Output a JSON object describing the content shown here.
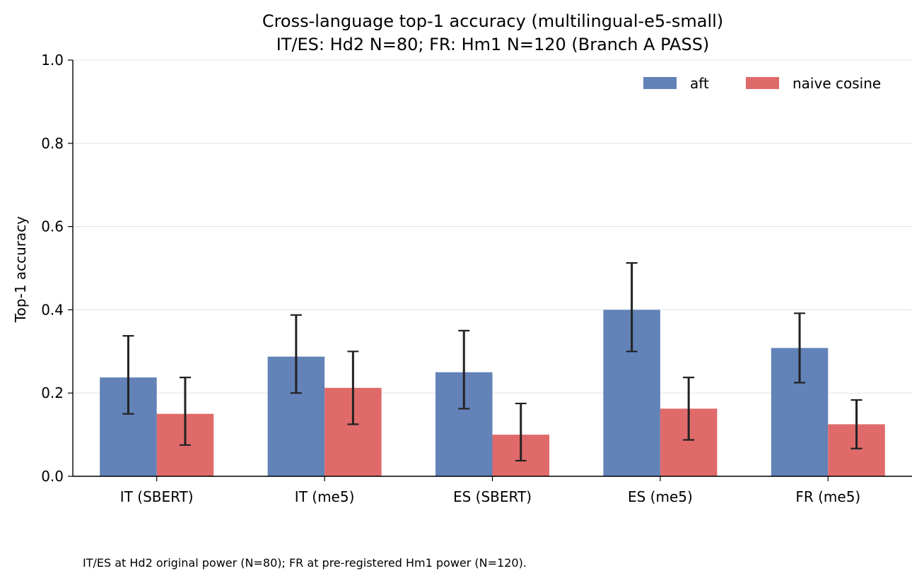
{
  "chart_data": {
    "type": "bar",
    "title": "Cross-language top-1 accuracy (multilingual-e5-small)",
    "subtitle": "IT/ES: Hd2 N=80; FR: Hm1 N=120 (Branch A PASS)",
    "xlabel": "",
    "ylabel": "Top-1 accuracy",
    "ylim": [
      0,
      1.0
    ],
    "yticks": [
      "0.0",
      "0.2",
      "0.4",
      "0.6",
      "0.8",
      "1.0"
    ],
    "grid": "y",
    "legend_position": "top-right",
    "categories": [
      "IT (SBERT)",
      "IT (me5)",
      "ES (SBERT)",
      "ES (me5)",
      "FR (me5)"
    ],
    "series": [
      {
        "name": "aft",
        "color": "#6282b8",
        "values": [
          0.2375,
          0.2875,
          0.25,
          0.4,
          0.3083
        ],
        "err_low": [
          0.15,
          0.2,
          0.1625,
          0.3,
          0.225
        ],
        "err_high": [
          0.3375,
          0.3875,
          0.35,
          0.5125,
          0.3917
        ]
      },
      {
        "name": "naive cosine",
        "color": "#e06a6a",
        "values": [
          0.15,
          0.2125,
          0.1,
          0.1625,
          0.125
        ],
        "err_low": [
          0.075,
          0.125,
          0.0375,
          0.0875,
          0.0667
        ],
        "err_high": [
          0.2375,
          0.3,
          0.175,
          0.2375,
          0.1833
        ]
      }
    ]
  },
  "caption": "IT/ES at Hd2 original power (N=80); FR at pre-registered Hm1 power (N=120)."
}
